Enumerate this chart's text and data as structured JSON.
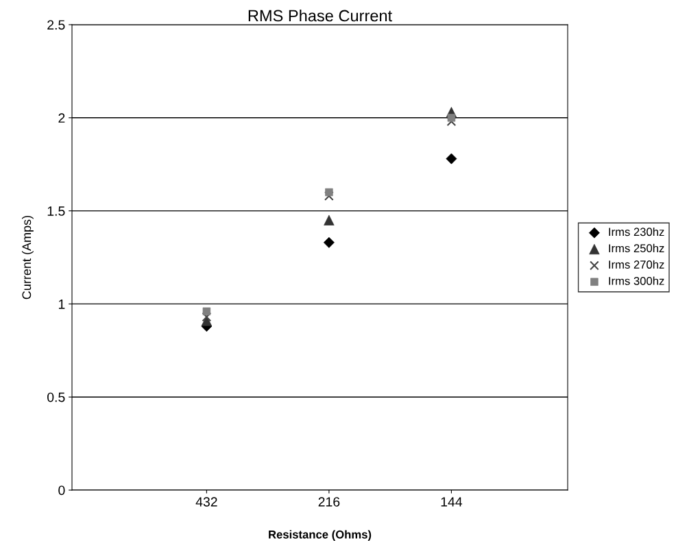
{
  "chart_data": {
    "type": "scatter",
    "title": "RMS Phase Current",
    "xlabel": "Resistance (Ohms)",
    "ylabel": "Current (Amps)",
    "categories": [
      "432",
      "216",
      "144"
    ],
    "series": [
      {
        "name": "Irms 230hz",
        "color": "#000000",
        "marker": "diamond",
        "values": [
          0.88,
          1.33,
          1.78
        ]
      },
      {
        "name": "Irms 250hz",
        "color": "#333333",
        "marker": "triangle",
        "values": [
          0.91,
          1.45,
          2.03
        ]
      },
      {
        "name": "Irms 270hz",
        "color": "#444444",
        "marker": "cross",
        "values": [
          0.93,
          1.58,
          1.98
        ]
      },
      {
        "name": "Irms 300hz",
        "color": "#808080",
        "marker": "square",
        "values": [
          0.96,
          1.6,
          2.0
        ]
      }
    ],
    "ylim": [
      0,
      2.5
    ],
    "yticks": [
      0,
      0.5,
      1,
      1.5,
      2,
      2.5
    ],
    "grid": "y",
    "legend": "right"
  }
}
